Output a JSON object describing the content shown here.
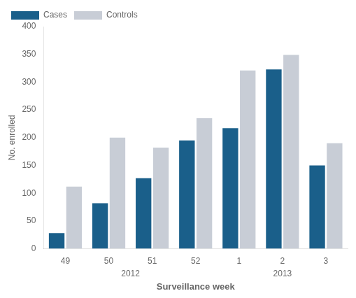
{
  "chart_data": {
    "type": "bar",
    "categories": [
      "49",
      "50",
      "51",
      "52",
      "1",
      "2",
      "3"
    ],
    "series": [
      {
        "name": "Cases",
        "color": "#1a5f8a",
        "values": [
          28,
          82,
          127,
          195,
          217,
          323,
          150
        ]
      },
      {
        "name": "Controls",
        "color": "#c8cdd6",
        "values": [
          112,
          200,
          182,
          235,
          321,
          349,
          190
        ]
      }
    ],
    "ylabel": "No. enrolled",
    "xlabel": "Surveillance week",
    "ylim": [
      0,
      400
    ],
    "yticks": [
      0,
      50,
      100,
      150,
      200,
      250,
      300,
      350,
      400
    ],
    "annotations": [
      {
        "text": "2012",
        "x": 1.5
      },
      {
        "text": "2013",
        "x": 5.0
      }
    ],
    "legend": "upper left",
    "grid": false
  }
}
